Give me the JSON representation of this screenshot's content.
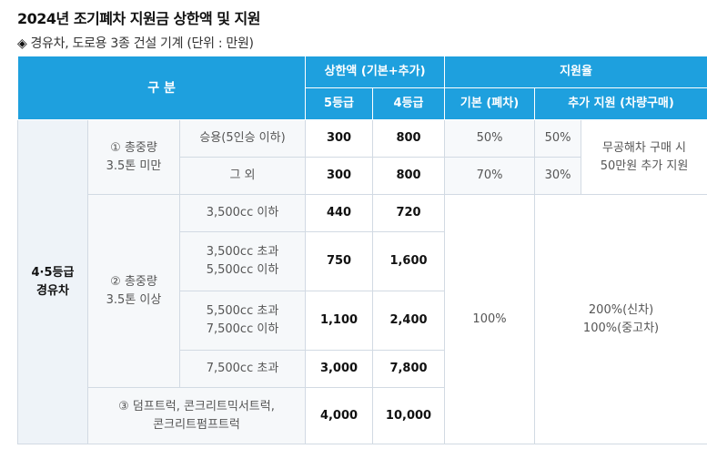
{
  "title": "2024년 조기폐차 지원금 상한액 및 지원",
  "subtitle": {
    "icon": "diamond-icon",
    "text": "경유차, 도로용 3종 건설 기계 (단위 : 만원)"
  },
  "header": {
    "category": "구 분",
    "cap_group": "상한액 (기본+추가)",
    "grade5": "5등급",
    "grade4": "4등급",
    "support_rate": "지원율",
    "basic": "기본 (폐차)",
    "additional": "추가 지원 (차량구매)"
  },
  "group_label": "4·5등급\n경유차",
  "sections": {
    "under35": {
      "label": "① 총중량\n3.5톤 미만"
    },
    "over35": {
      "label": "② 총중량\n3.5톤 이상"
    },
    "dump": {
      "label": "③ 덤프트럭, 콘크리트믹서트럭,\n콘크리트펌프트럭"
    }
  },
  "rows": [
    {
      "type": "승용(5인승 이하)",
      "g5": "300",
      "g4": "800",
      "basic": "50%",
      "add_rate": "50%"
    },
    {
      "type": "그 외",
      "g5": "300",
      "g4": "800",
      "basic": "70%",
      "add_rate": "30%"
    },
    {
      "type": "3,500cc 이하",
      "g5": "440",
      "g4": "720"
    },
    {
      "type": "3,500cc 초과\n5,500cc 이하",
      "g5": "750",
      "g4": "1,600"
    },
    {
      "type": "5,500cc 초과\n7,500cc 이하",
      "g5": "1,100",
      "g4": "2,400"
    },
    {
      "type": "7,500cc 초과",
      "g5": "3,000",
      "g4": "7,800"
    },
    {
      "g5": "4,000",
      "g4": "10,000"
    }
  ],
  "extra_note": "무공해차 구매 시\n50만원 추가 지원",
  "big_basic": "100%",
  "big_additional": "200%(신차)\n100%(중고차)",
  "colors": {
    "header_bg": "#1ea0de",
    "header_text": "#ffffff",
    "border": "#d2dae3"
  }
}
